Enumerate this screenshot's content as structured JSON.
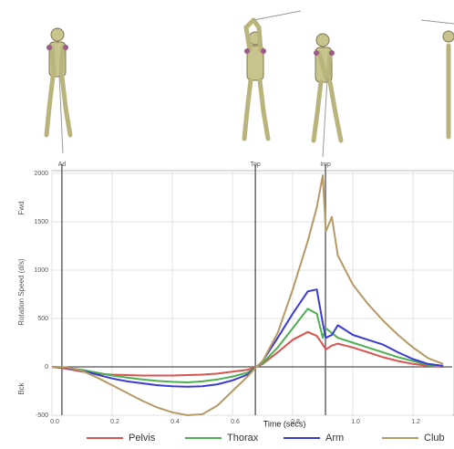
{
  "chart_data": {
    "type": "line",
    "x_label": "Time (secs)",
    "y_label": "Rotation Speed (d/s)",
    "annotations": [
      "Fwd",
      "Bck"
    ],
    "events": [
      {
        "label": "Ad",
        "x": 0.033
      },
      {
        "label": "Top",
        "x": 0.676
      },
      {
        "label": "Imp",
        "x": 0.909
      }
    ],
    "x": [
      0,
      0.05,
      0.1,
      0.15,
      0.2,
      0.25,
      0.3,
      0.35,
      0.4,
      0.45,
      0.5,
      0.55,
      0.6,
      0.65,
      0.68,
      0.7,
      0.75,
      0.8,
      0.85,
      0.88,
      0.9,
      0.91,
      0.93,
      0.95,
      1.0,
      1.05,
      1.1,
      1.15,
      1.2,
      1.25,
      1.3
    ],
    "series": [
      {
        "name": "Pelvis",
        "color": "#d9534f",
        "values": [
          0,
          -20,
          -50,
          -70,
          -80,
          -85,
          -90,
          -90,
          -90,
          -85,
          -80,
          -70,
          -50,
          -30,
          0,
          30,
          150,
          280,
          360,
          320,
          230,
          180,
          220,
          240,
          200,
          150,
          100,
          60,
          30,
          10,
          0
        ]
      },
      {
        "name": "Thorax",
        "color": "#4caf50",
        "values": [
          0,
          -10,
          -30,
          -60,
          -90,
          -110,
          -130,
          -145,
          -155,
          -160,
          -150,
          -130,
          -100,
          -60,
          0,
          40,
          200,
          400,
          600,
          550,
          300,
          400,
          350,
          300,
          250,
          200,
          150,
          100,
          60,
          20,
          5
        ]
      },
      {
        "name": "Arm",
        "color": "#3a3ad6",
        "values": [
          0,
          -10,
          -40,
          -80,
          -120,
          -150,
          -170,
          -190,
          -200,
          -205,
          -200,
          -180,
          -140,
          -80,
          0,
          60,
          300,
          550,
          780,
          800,
          450,
          300,
          330,
          430,
          330,
          280,
          230,
          150,
          80,
          30,
          10
        ]
      },
      {
        "name": "Club",
        "color": "#b59a66",
        "values": [
          0,
          -5,
          -40,
          -110,
          -190,
          -270,
          -350,
          -420,
          -470,
          -500,
          -490,
          -400,
          -250,
          -100,
          0,
          60,
          350,
          800,
          1300,
          1650,
          1980,
          1400,
          1550,
          1150,
          850,
          650,
          480,
          330,
          200,
          90,
          30
        ]
      }
    ],
    "xlim": [
      0,
      1.33
    ],
    "ylim": [
      -500,
      2000
    ],
    "xticks": [
      {
        "value": 0,
        "label": "0.0"
      },
      {
        "value": 0.2,
        "label": "0.2"
      },
      {
        "value": 0.4,
        "label": "0.4"
      },
      {
        "value": 0.6,
        "label": "0.6"
      },
      {
        "value": 0.8,
        "label": "0.8"
      },
      {
        "value": 1,
        "label": "1.0"
      },
      {
        "value": 1.2,
        "label": "1.2"
      }
    ],
    "yticks": [
      -500,
      0,
      500,
      1000,
      1500,
      2000
    ],
    "grid": true
  }
}
